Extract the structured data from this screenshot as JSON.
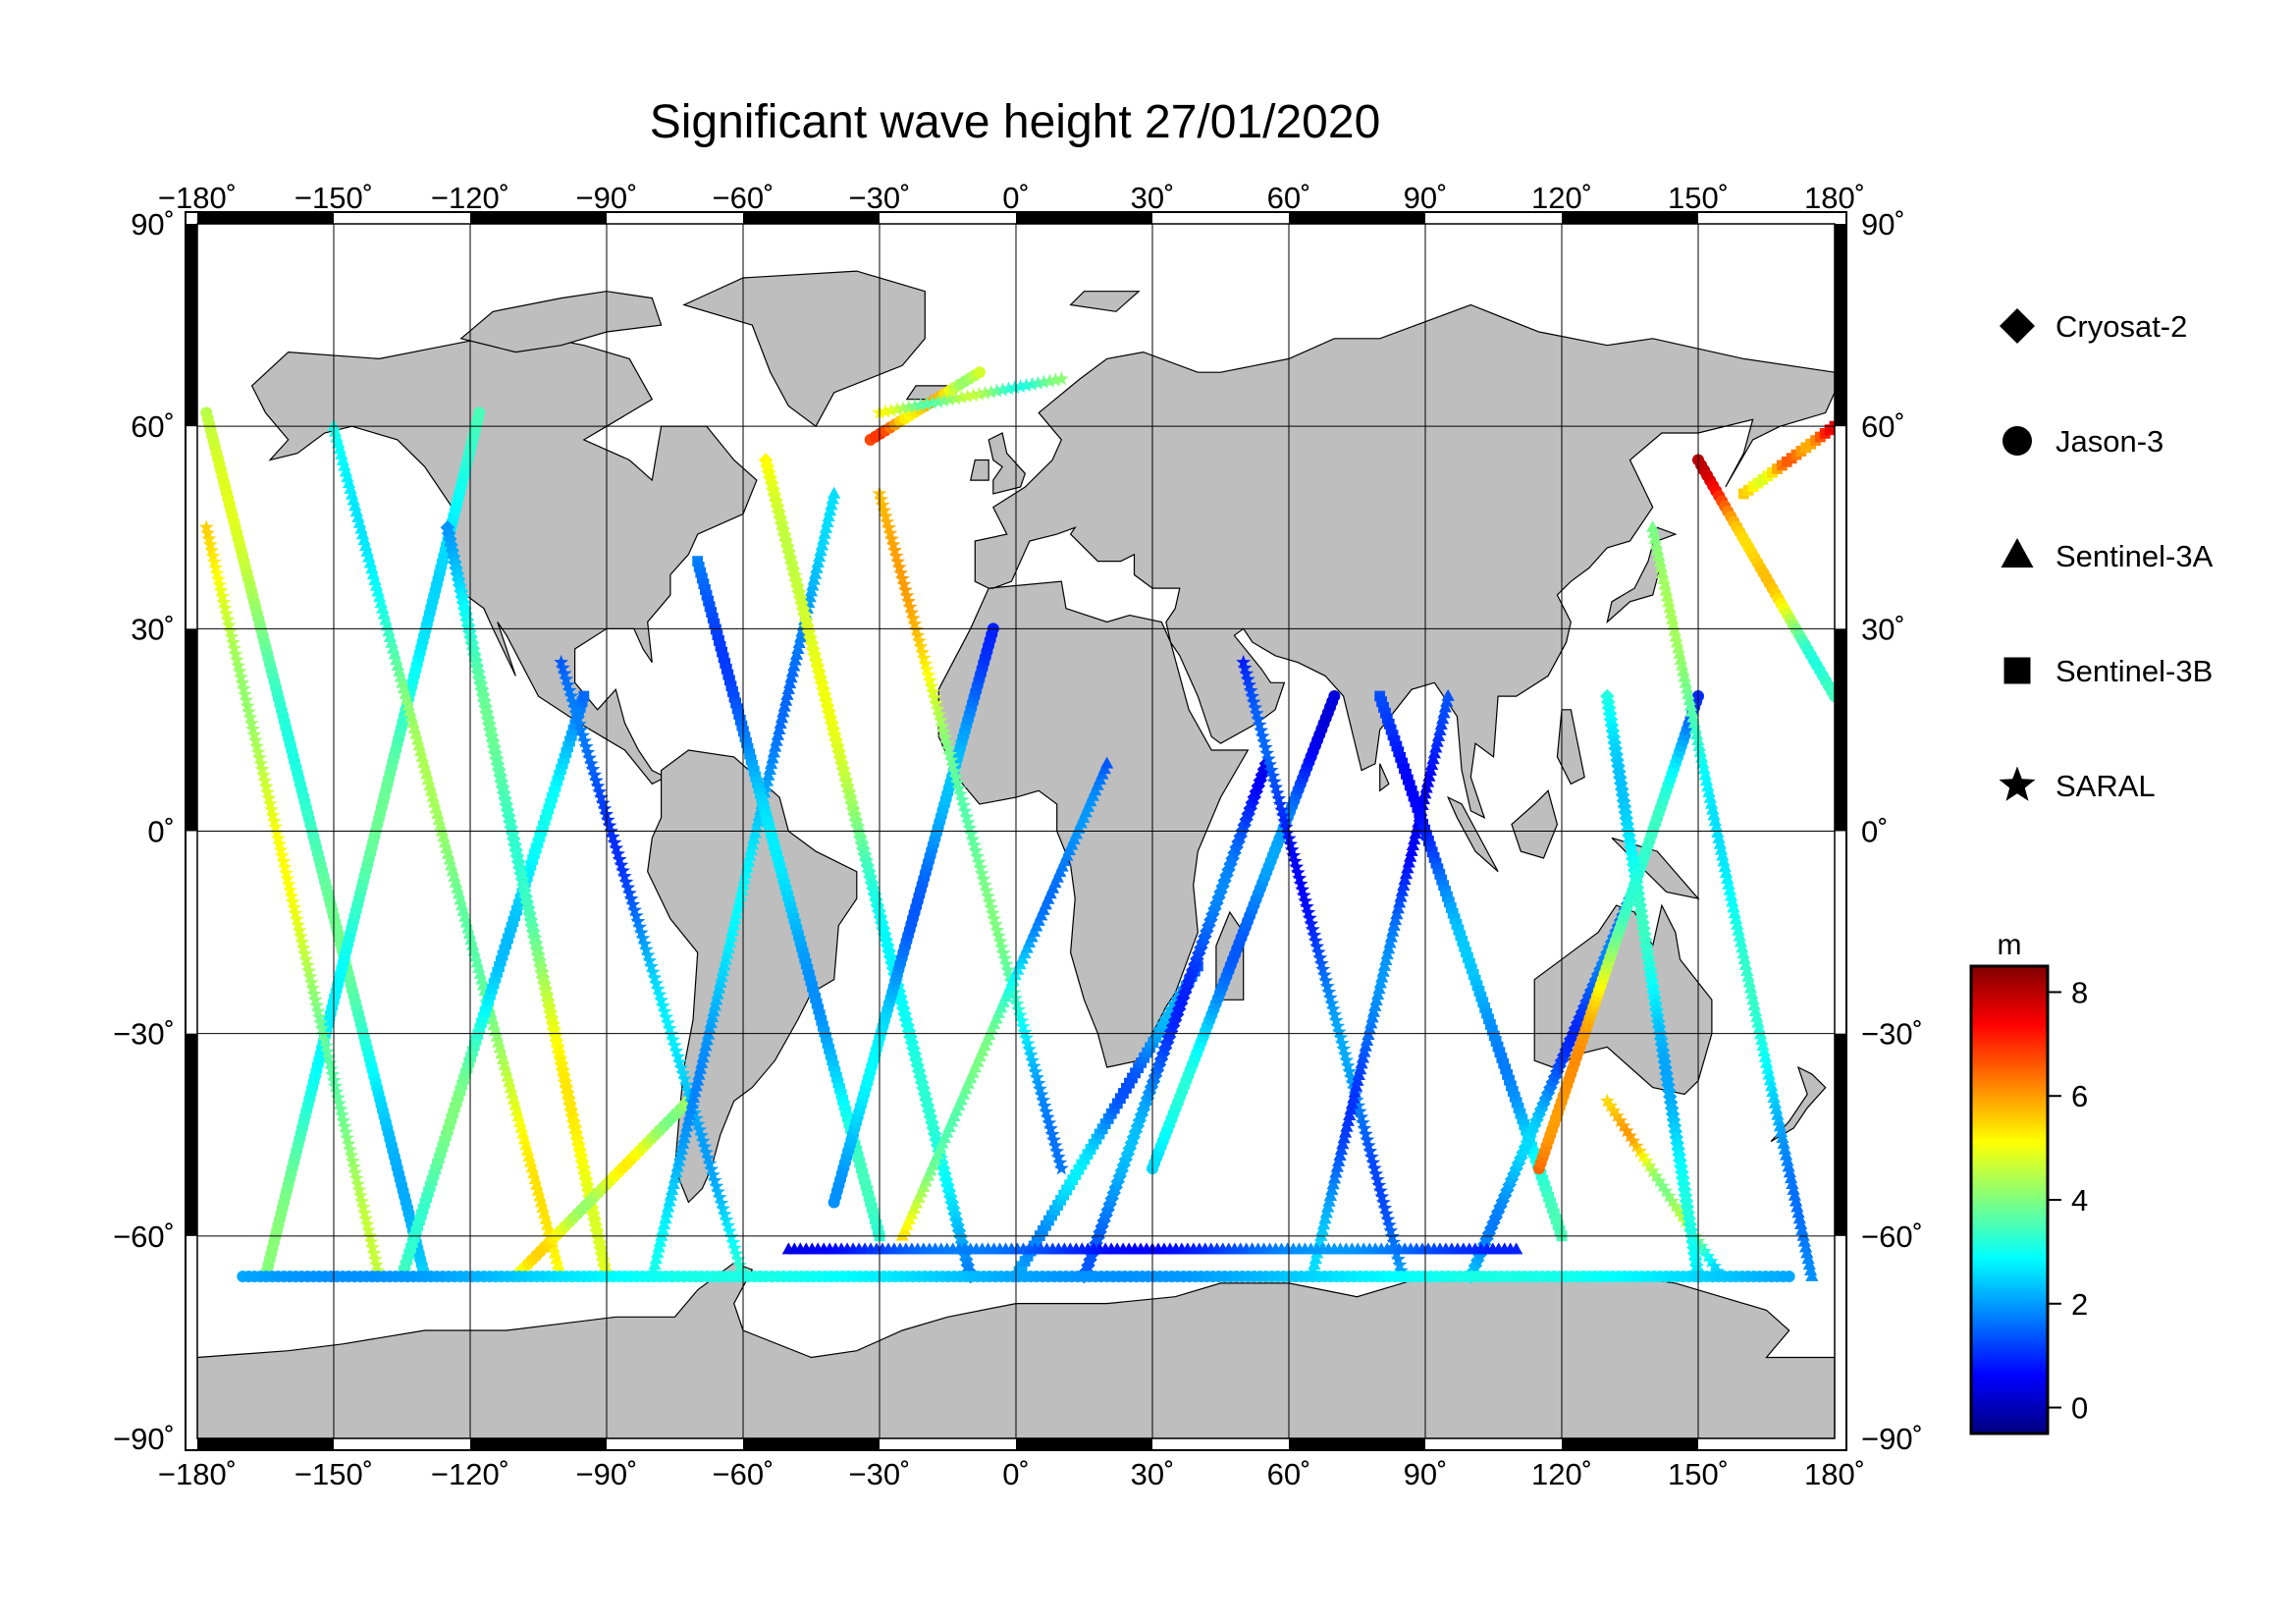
{
  "title": "Significant wave height 27/01/2020",
  "colorbar": {
    "unit": "m",
    "min": -0.5,
    "max": 8.5,
    "ticks": [
      0,
      2,
      4,
      6,
      8
    ],
    "ticks_text": [
      "0",
      "2",
      "4",
      "6",
      "8"
    ],
    "colormap": [
      "#000080",
      "#0000ff",
      "#0080ff",
      "#00ffff",
      "#80ff80",
      "#ffff00",
      "#ff8000",
      "#ff0000",
      "#800000"
    ]
  },
  "legend": [
    {
      "label": "Cryosat-2",
      "marker": "diamond"
    },
    {
      "label": "Jason-3",
      "marker": "circle"
    },
    {
      "label": "Sentinel-3A",
      "marker": "triangle"
    },
    {
      "label": "Sentinel-3B",
      "marker": "square"
    },
    {
      "label": "SARAL",
      "marker": "star"
    }
  ],
  "axes": {
    "lon_ticks": [
      -180,
      -150,
      -120,
      -90,
      -60,
      -30,
      0,
      30,
      60,
      90,
      120,
      150,
      180
    ],
    "lon_ticks_text": [
      "−180˚",
      "−150˚",
      "−120˚",
      "−90˚",
      "−60˚",
      "−30˚",
      "0˚",
      "30˚",
      "60˚",
      "90˚",
      "120˚",
      "150˚",
      "180˚"
    ],
    "lat_ticks": [
      90,
      60,
      30,
      0,
      -30,
      -60,
      -90
    ],
    "lat_ticks_text": [
      "90˚",
      "60˚",
      "30˚",
      "0˚",
      "−30˚",
      "−60˚",
      "−90˚"
    ],
    "lon_range": [
      -180,
      180
    ],
    "lat_range": [
      -90,
      90
    ],
    "grid": true,
    "projection": "equirectangular"
  },
  "colors": {
    "land": "#bebebe",
    "ocean": "#ffffff",
    "frame": "#000000",
    "grid": "#000000"
  },
  "tracks": [
    {
      "satellite": "Jason-3",
      "from": [
        -178,
        62
      ],
      "to": [
        -130,
        -66
      ],
      "swh_start": 4.5,
      "swh_end": 2.5
    },
    {
      "satellite": "Jason-3",
      "from": [
        -165,
        -66
      ],
      "to": [
        -118,
        62
      ],
      "swh_start": 3.5,
      "swh_end": 3.0
    },
    {
      "satellite": "SARAL",
      "from": [
        -178,
        45
      ],
      "to": [
        -140,
        -66
      ],
      "swh_start": 5.0,
      "swh_end": 4.0
    },
    {
      "satellite": "Sentinel-3A",
      "from": [
        -150,
        60
      ],
      "to": [
        -100,
        -66
      ],
      "swh_start": 3.0,
      "swh_end": 5.0
    },
    {
      "satellite": "Sentinel-3B",
      "from": [
        -135,
        -66
      ],
      "to": [
        -95,
        20
      ],
      "swh_start": 4.0,
      "swh_end": 2.0
    },
    {
      "satellite": "Cryosat-2",
      "from": [
        -125,
        45
      ],
      "to": [
        -90,
        -66
      ],
      "swh_start": 2.5,
      "swh_end": 5.5
    },
    {
      "satellite": "Jason-3",
      "from": [
        -110,
        -66
      ],
      "to": [
        -72,
        -40
      ],
      "swh_start": 5.0,
      "swh_end": 4.5
    },
    {
      "satellite": "SARAL",
      "from": [
        -100,
        25
      ],
      "to": [
        -60,
        -66
      ],
      "swh_start": 1.0,
      "swh_end": 3.0
    },
    {
      "satellite": "Sentinel-3A",
      "from": [
        -80,
        -66
      ],
      "to": [
        -40,
        50
      ],
      "swh_start": 2.5,
      "swh_end": 2.0
    },
    {
      "satellite": "Sentinel-3B",
      "from": [
        -70,
        40
      ],
      "to": [
        -30,
        -60
      ],
      "swh_start": 1.5,
      "swh_end": 3.0
    },
    {
      "satellite": "Cryosat-2",
      "from": [
        -55,
        55
      ],
      "to": [
        -10,
        -66
      ],
      "swh_start": 5.5,
      "swh_end": 2.0
    },
    {
      "satellite": "Jason-3",
      "from": [
        -40,
        -55
      ],
      "to": [
        -5,
        30
      ],
      "swh_start": 2.5,
      "swh_end": 1.5
    },
    {
      "satellite": "SARAL",
      "from": [
        -30,
        50
      ],
      "to": [
        10,
        -50
      ],
      "swh_start": 6.0,
      "swh_end": 2.0
    },
    {
      "satellite": "Jason-3",
      "from": [
        -32,
        58
      ],
      "to": [
        -8,
        68
      ],
      "swh_start": 6.5,
      "swh_end": 4.5
    },
    {
      "satellite": "SARAL",
      "from": [
        -30,
        62
      ],
      "to": [
        10,
        67
      ],
      "swh_start": 4.5,
      "swh_end": 3.5
    },
    {
      "satellite": "Sentinel-3A",
      "from": [
        -25,
        -60
      ],
      "to": [
        20,
        10
      ],
      "swh_start": 5.0,
      "swh_end": 1.0
    },
    {
      "satellite": "Sentinel-3B",
      "from": [
        0,
        -66
      ],
      "to": [
        40,
        -20
      ],
      "swh_start": 2.5,
      "swh_end": 1.5
    },
    {
      "satellite": "Cryosat-2",
      "from": [
        15,
        -66
      ],
      "to": [
        55,
        10
      ],
      "swh_start": 2.0,
      "swh_end": 1.0
    },
    {
      "satellite": "Jason-3",
      "from": [
        30,
        -50
      ],
      "to": [
        70,
        20
      ],
      "swh_start": 3.0,
      "swh_end": 0.8
    },
    {
      "satellite": "SARAL",
      "from": [
        50,
        25
      ],
      "to": [
        85,
        -66
      ],
      "swh_start": 0.8,
      "swh_end": 2.0
    },
    {
      "satellite": "Sentinel-3A",
      "from": [
        65,
        -66
      ],
      "to": [
        95,
        20
      ],
      "swh_start": 2.0,
      "swh_end": 0.8
    },
    {
      "satellite": "Sentinel-3B",
      "from": [
        80,
        20
      ],
      "to": [
        120,
        -60
      ],
      "swh_start": 0.8,
      "swh_end": 3.0
    },
    {
      "satellite": "Cryosat-2",
      "from": [
        100,
        -66
      ],
      "to": [
        135,
        -10
      ],
      "swh_start": 2.5,
      "swh_end": 1.0
    },
    {
      "satellite": "Jason-3",
      "from": [
        115,
        -50
      ],
      "to": [
        150,
        20
      ],
      "swh_start": 7.0,
      "swh_end": 1.5
    },
    {
      "satellite": "SARAL",
      "from": [
        130,
        -40
      ],
      "to": [
        155,
        -66
      ],
      "swh_start": 6.0,
      "swh_end": 3.0
    },
    {
      "satellite": "Sentinel-3A",
      "from": [
        140,
        45
      ],
      "to": [
        175,
        -66
      ],
      "swh_start": 4.0,
      "swh_end": 2.0
    },
    {
      "satellite": "Jason-3",
      "from": [
        150,
        55
      ],
      "to": [
        180,
        20
      ],
      "swh_start": 7.5,
      "swh_end": 3.0
    },
    {
      "satellite": "Sentinel-3B",
      "from": [
        160,
        50
      ],
      "to": [
        180,
        60
      ],
      "swh_start": 5.0,
      "swh_end": 7.0
    },
    {
      "satellite": "Cryosat-2",
      "from": [
        130,
        20
      ],
      "to": [
        150,
        -66
      ],
      "swh_start": 3.0,
      "swh_end": 2.5
    },
    {
      "satellite": "Jason-3",
      "from": [
        -170,
        -66
      ],
      "to": [
        170,
        -66
      ],
      "swh_start": 2.5,
      "swh_end": 2.5
    },
    {
      "satellite": "Sentinel-3A",
      "from": [
        -50,
        -62
      ],
      "to": [
        110,
        -62
      ],
      "swh_start": 1.0,
      "swh_end": 1.5
    }
  ]
}
